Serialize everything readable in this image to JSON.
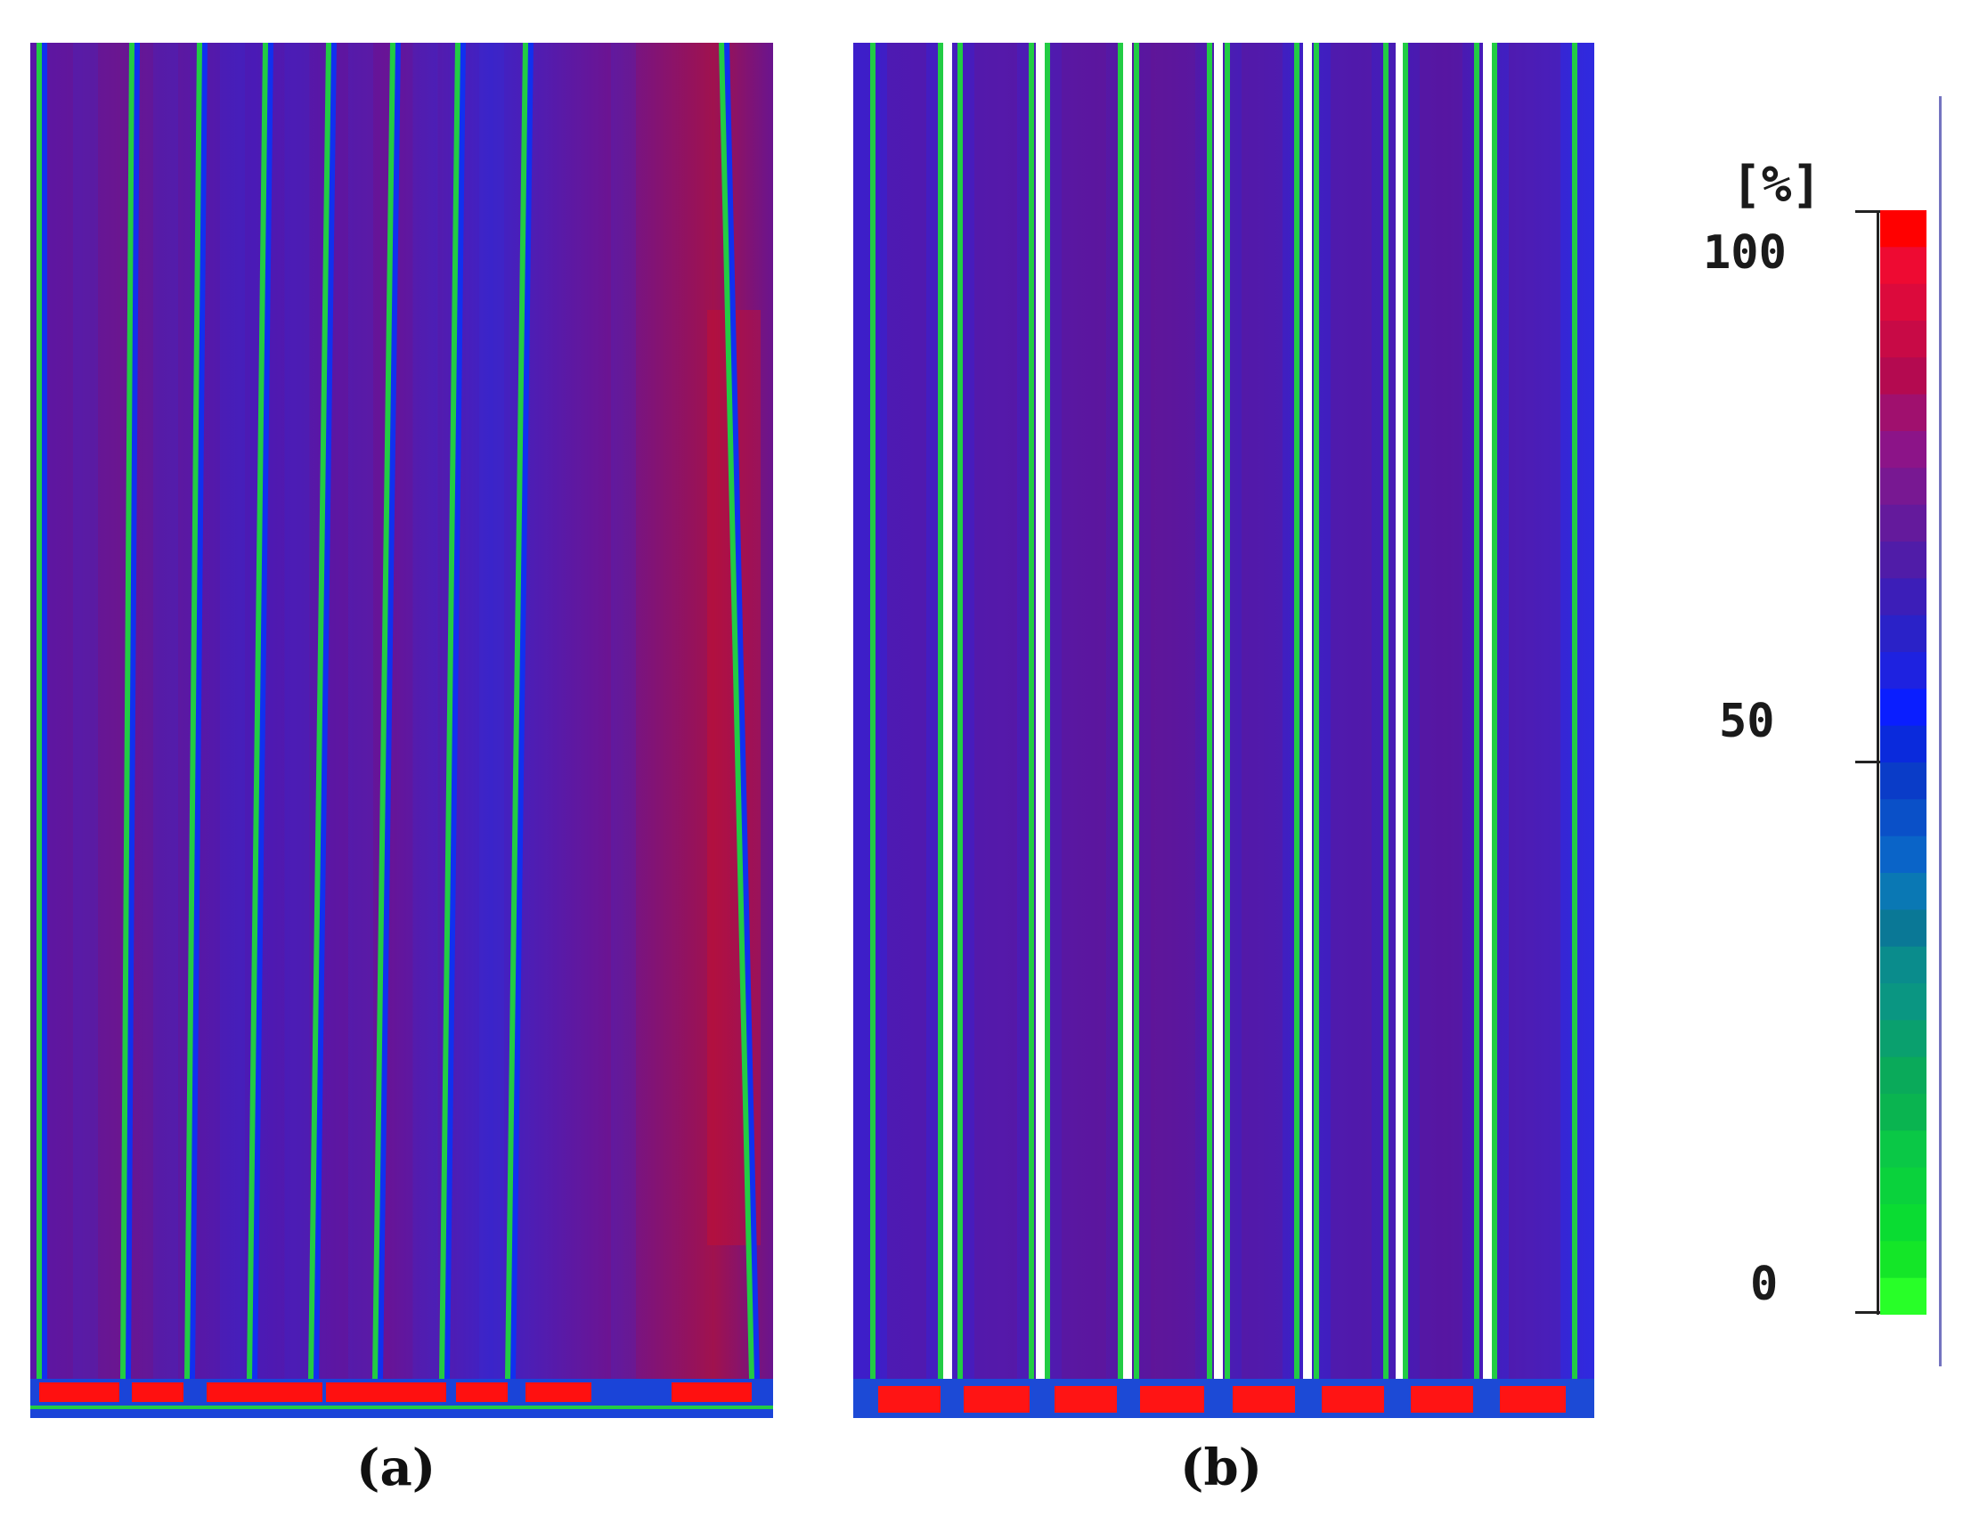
{
  "panels": [
    {
      "caption": "(a)"
    },
    {
      "caption": "(b)"
    }
  ],
  "colorbar": {
    "unit": "[%]",
    "ticks": [
      {
        "label": "100",
        "value": 100
      },
      {
        "label": "50",
        "value": 50
      },
      {
        "label": "0",
        "value": 0
      }
    ],
    "colors": [
      "#ff0000",
      "#ee0a32",
      "#dc0a3c",
      "#c80a46",
      "#b40a50",
      "#a0106e",
      "#8c1488",
      "#781892",
      "#641a9c",
      "#501ca8",
      "#3c1eb8",
      "#2a22c8",
      "#1e22e0",
      "#0a1eff",
      "#0a2adc",
      "#0a3cc8",
      "#0a50c8",
      "#0a64c8",
      "#0a78b4",
      "#0a7896",
      "#0a8c8c",
      "#0a9682",
      "#0aa06e",
      "#0aaa5a",
      "#0ab450",
      "#0ac846",
      "#0ad23c",
      "#0adc32",
      "#14e628",
      "#28ff28"
    ]
  }
}
